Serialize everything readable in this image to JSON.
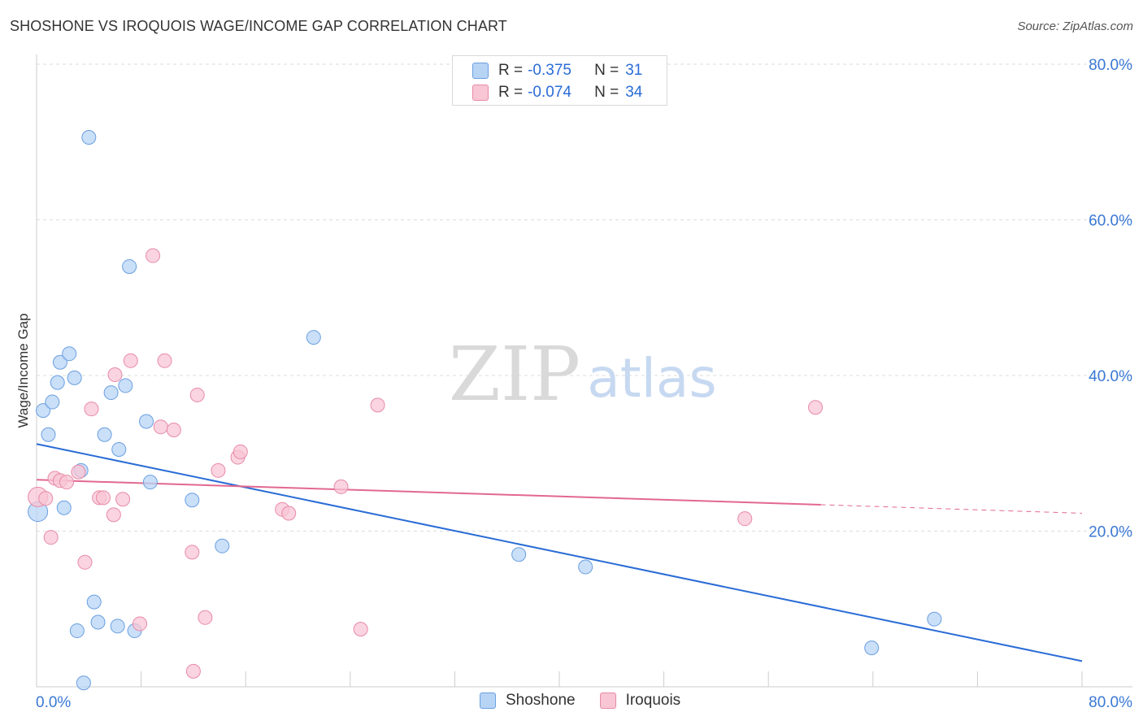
{
  "title": "SHOSHONE VS IROQUOIS WAGE/INCOME GAP CORRELATION CHART",
  "source": "Source: ZipAtlas.com",
  "watermark": {
    "zip": "ZIP",
    "atlas": "atlas"
  },
  "legend": {
    "rows": [
      {
        "r_label": "R =",
        "r_value": "-0.375",
        "n_label": "N =",
        "n_value": "31"
      },
      {
        "r_label": "R =",
        "r_value": "-0.074",
        "n_label": "N =",
        "n_value": "34"
      }
    ]
  },
  "bottom_legend": [
    "Shoshone",
    "Iroquois"
  ],
  "colors": {
    "shoshone_fill": "#b8d4f5",
    "shoshone_stroke": "#6a9fe0",
    "shoshone_line": "#2a6cd6",
    "iroquois_fill": "#f8c6d5",
    "iroquois_stroke": "#e88aa8",
    "iroquois_line": "#e2688f",
    "axis_text": "#3a78d4",
    "grid": "#dddddd"
  },
  "chart_data": {
    "type": "scatter",
    "title": "SHOSHONE VS IROQUOIS WAGE/INCOME GAP CORRELATION CHART",
    "xlabel": "",
    "ylabel": "Wage/Income Gap",
    "xlim": [
      0,
      80
    ],
    "ylim": [
      0,
      80
    ],
    "x_tick_labels": [
      "0.0%",
      "80.0%"
    ],
    "y_ticks": [
      20,
      40,
      60,
      80
    ],
    "y_tick_labels": [
      "20.0%",
      "40.0%",
      "60.0%",
      "80.0%"
    ],
    "grid": true,
    "series": [
      {
        "name": "Shoshone",
        "R": -0.375,
        "N": 31,
        "points": [
          [
            0.1,
            22.5
          ],
          [
            0.5,
            35.5
          ],
          [
            0.9,
            32.4
          ],
          [
            1.2,
            36.6
          ],
          [
            1.6,
            39.1
          ],
          [
            1.8,
            41.7
          ],
          [
            2.1,
            23.0
          ],
          [
            2.5,
            42.8
          ],
          [
            2.9,
            39.7
          ],
          [
            3.1,
            7.2
          ],
          [
            3.4,
            27.8
          ],
          [
            3.6,
            0.5
          ],
          [
            4.0,
            70.6
          ],
          [
            4.4,
            10.9
          ],
          [
            4.7,
            8.3
          ],
          [
            5.2,
            32.4
          ],
          [
            5.7,
            37.8
          ],
          [
            6.2,
            7.8
          ],
          [
            6.3,
            30.5
          ],
          [
            6.8,
            38.7
          ],
          [
            7.1,
            54.0
          ],
          [
            7.5,
            7.2
          ],
          [
            8.4,
            34.1
          ],
          [
            8.7,
            26.3
          ],
          [
            11.9,
            24.0
          ],
          [
            14.2,
            18.1
          ],
          [
            21.2,
            44.9
          ],
          [
            36.9,
            17.0
          ],
          [
            42.0,
            15.4
          ],
          [
            63.9,
            5.0
          ],
          [
            68.7,
            8.7
          ]
        ],
        "trend": {
          "x0": 0,
          "y0": 31.2,
          "x1": 80,
          "y1": 3.3
        }
      },
      {
        "name": "Iroquois",
        "R": -0.074,
        "N": 34,
        "points": [
          [
            0.1,
            24.4
          ],
          [
            0.7,
            24.2
          ],
          [
            1.1,
            19.2
          ],
          [
            1.4,
            26.8
          ],
          [
            1.8,
            26.5
          ],
          [
            2.3,
            26.3
          ],
          [
            3.2,
            27.6
          ],
          [
            3.7,
            16.0
          ],
          [
            4.2,
            35.7
          ],
          [
            4.8,
            24.3
          ],
          [
            5.1,
            24.3
          ],
          [
            5.9,
            22.1
          ],
          [
            6.0,
            40.1
          ],
          [
            6.6,
            24.1
          ],
          [
            7.2,
            41.9
          ],
          [
            7.9,
            8.1
          ],
          [
            8.9,
            55.4
          ],
          [
            9.5,
            33.4
          ],
          [
            9.8,
            41.9
          ],
          [
            10.5,
            33.0
          ],
          [
            11.9,
            17.3
          ],
          [
            12.3,
            37.5
          ],
          [
            12.9,
            8.9
          ],
          [
            13.9,
            27.8
          ],
          [
            15.4,
            29.5
          ],
          [
            15.6,
            30.2
          ],
          [
            18.8,
            22.8
          ],
          [
            19.3,
            22.3
          ],
          [
            23.3,
            25.7
          ],
          [
            24.8,
            7.4
          ],
          [
            26.1,
            36.2
          ],
          [
            12.0,
            2.0
          ],
          [
            54.2,
            21.6
          ],
          [
            59.6,
            35.9
          ]
        ],
        "trend": {
          "x0": 0,
          "y0": 26.6,
          "x1": 60,
          "y1": 23.4,
          "dash_to_x": 80,
          "dash_to_y": 22.3
        }
      }
    ]
  }
}
